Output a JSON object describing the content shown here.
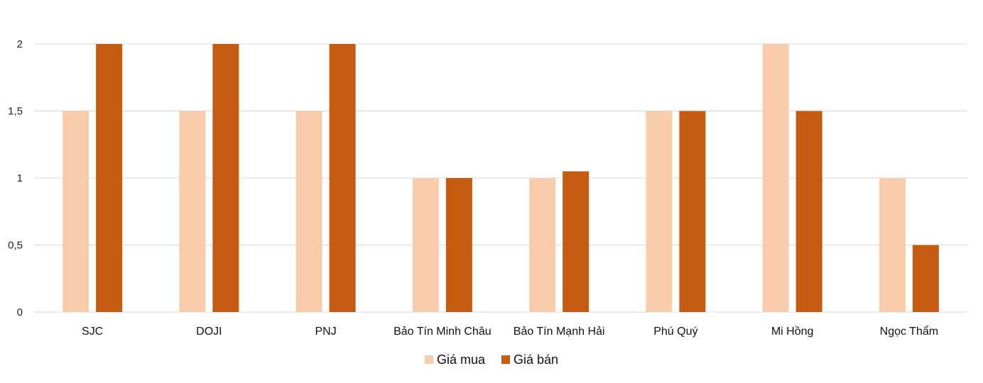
{
  "chart_data": {
    "type": "bar",
    "categories": [
      "SJC",
      "DOJI",
      "PNJ",
      "Bảo Tín Minh Châu",
      "Bảo Tín Mạnh Hải",
      "Phú Quý",
      "Mi Hồng",
      "Ngọc Thẩm"
    ],
    "series": [
      {
        "name": "Giá mua",
        "values": [
          1.5,
          1.5,
          1.5,
          1.0,
          1.0,
          1.5,
          2.0,
          1.0
        ],
        "color": "#f7cbac"
      },
      {
        "name": "Giá bán",
        "values": [
          2.0,
          2.0,
          2.0,
          1.0,
          1.05,
          1.5,
          1.5,
          0.5
        ],
        "color": "#c55a11"
      }
    ],
    "yticks": [
      "0",
      "0,5",
      "1",
      "1,5",
      "2"
    ],
    "ylim": [
      0,
      2
    ],
    "grid": true,
    "legend": "bottom",
    "gridline_color": "#d9d9d9"
  }
}
